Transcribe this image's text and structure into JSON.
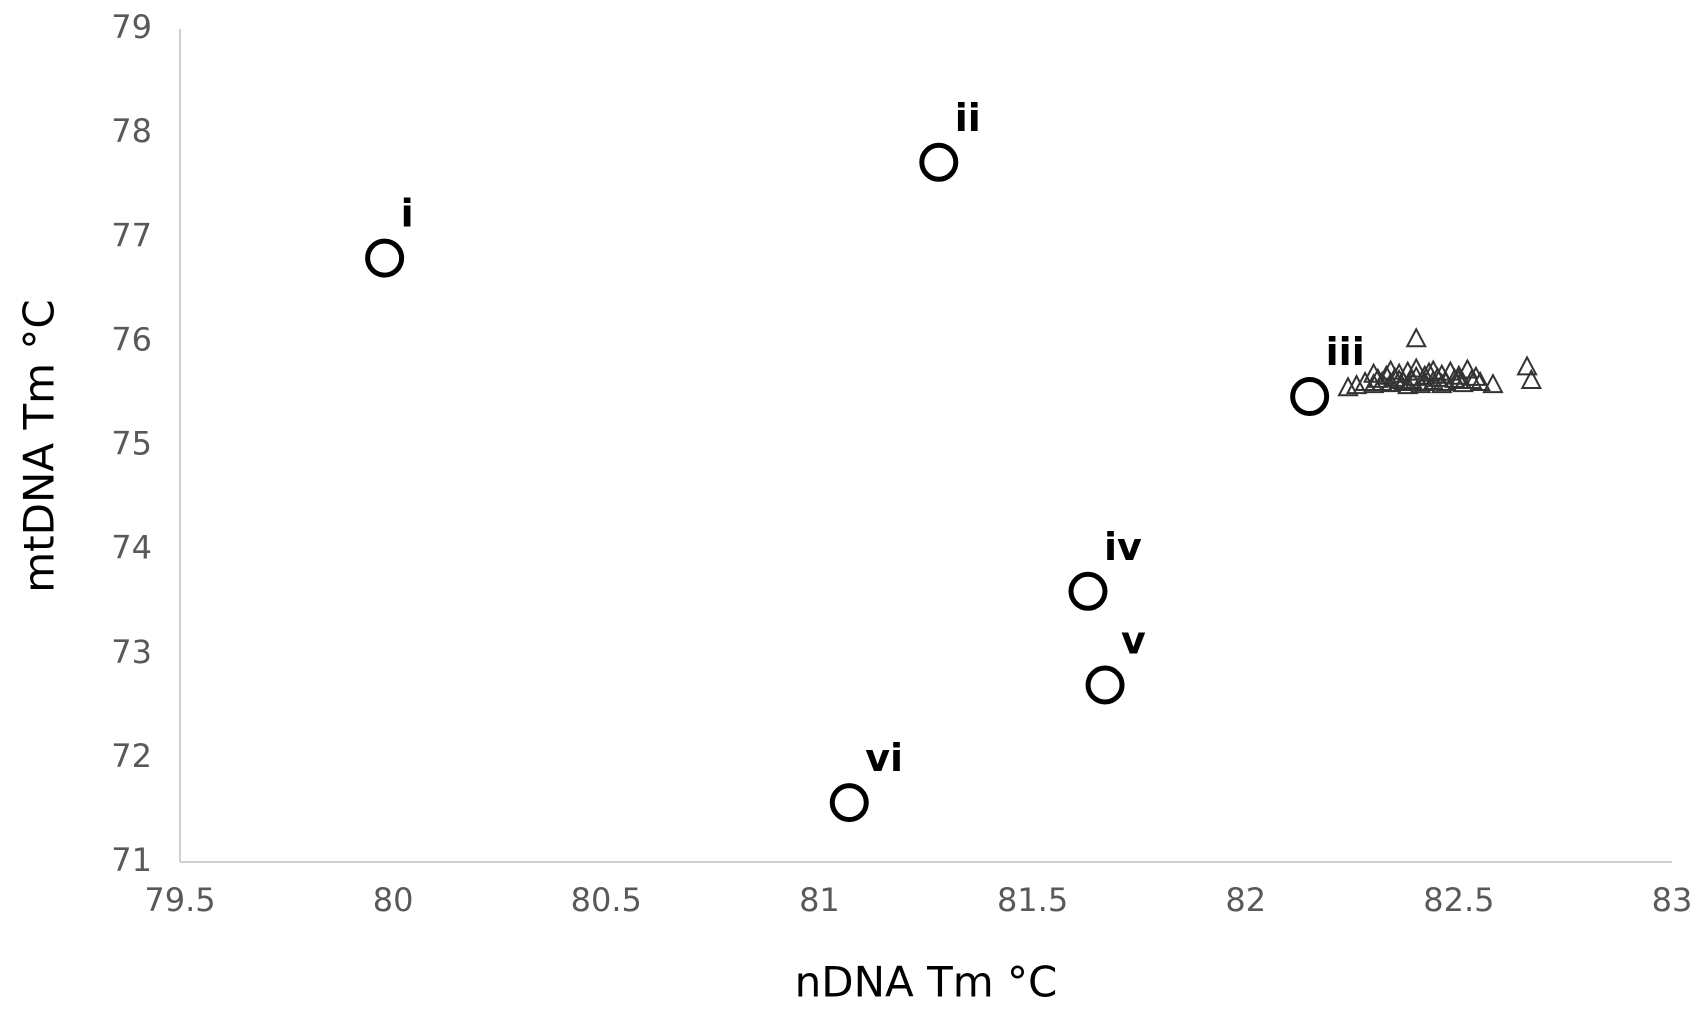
{
  "chart_data": {
    "type": "scatter",
    "x_label": "nDNA Tm °C",
    "y_label": "mtDNA Tm °C",
    "xlim": [
      79.5,
      83
    ],
    "xticks": [
      79.5,
      80,
      80.5,
      81,
      81.5,
      82,
      82.5,
      83
    ],
    "ylim": [
      71,
      79
    ],
    "yticks": [
      71,
      72,
      73,
      74,
      75,
      76,
      77,
      78,
      79
    ],
    "grid": false,
    "series": [
      {
        "marker": "triangle",
        "color": "#333333",
        "x": [
          82.26,
          82.28,
          82.3,
          82.31,
          82.32,
          82.33,
          82.34,
          82.35,
          82.36,
          82.37,
          82.38,
          82.39,
          82.4,
          82.41,
          82.42,
          82.43,
          82.44,
          82.45,
          82.46,
          82.47,
          82.48,
          82.49,
          82.5,
          82.51,
          82.52,
          82.53,
          82.54,
          82.55,
          82.3,
          82.34,
          82.38,
          82.42,
          82.46,
          82.5,
          82.36,
          82.44,
          82.4,
          82.24,
          82.58,
          82.4,
          82.66,
          82.67
        ],
        "values": [
          75.57,
          75.6,
          75.58,
          75.63,
          75.6,
          75.66,
          75.59,
          75.64,
          75.68,
          75.6,
          75.7,
          75.62,
          75.73,
          75.58,
          75.66,
          75.69,
          75.61,
          75.64,
          75.67,
          75.6,
          75.7,
          75.63,
          75.66,
          75.59,
          75.72,
          75.62,
          75.65,
          75.6,
          75.68,
          75.71,
          75.57,
          75.6,
          75.58,
          75.62,
          75.62,
          75.71,
          75.65,
          75.55,
          75.58,
          76.02,
          75.75,
          75.62
        ]
      },
      {
        "marker": "circle",
        "color": "#000000",
        "x": [
          79.98,
          81.28,
          82.15,
          81.63,
          81.67,
          81.07
        ],
        "values": [
          76.8,
          77.72,
          75.47,
          73.6,
          72.7,
          71.57
        ],
        "point_labels": [
          "i",
          "ii",
          "iii",
          "iv",
          "v",
          "vi"
        ]
      }
    ]
  }
}
